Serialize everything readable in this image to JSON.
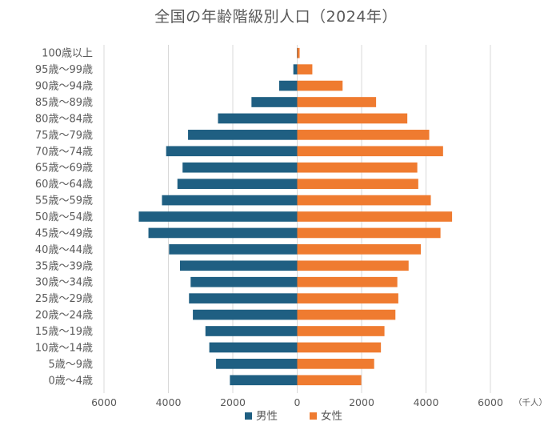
{
  "chart_data": {
    "type": "bar",
    "orientation": "horizontal",
    "title": "全国の年齢階級別人口（2024年）",
    "unit_label": "（千人）",
    "xlim": [
      -6000,
      6000
    ],
    "x_ticks": [
      -6000,
      -4000,
      -2000,
      0,
      2000,
      4000,
      6000
    ],
    "x_tick_labels": [
      "6000",
      "4000",
      "2000",
      "0",
      "2000",
      "4000",
      "6000"
    ],
    "grid": true,
    "legend_position": "bottom",
    "categories": [
      "100歳以上",
      "95歳～99歳",
      "90歳～94歳",
      "85歳～89歳",
      "80歳～84歳",
      "75歳～79歳",
      "70歳～74歳",
      "65歳～69歳",
      "60歳～64歳",
      "55歳～59歳",
      "50歳～54歳",
      "45歳～49歳",
      "40歳～44歳",
      "35歳～39歳",
      "30歳～34歳",
      "25歳～29歳",
      "20歳～24歳",
      "15歳～19歳",
      "10歳～14歳",
      "5歳～9歳",
      "0歳～4歳"
    ],
    "series": [
      {
        "name": "男性",
        "color": "#1f5f82",
        "values": [
          10,
          120,
          560,
          1420,
          2460,
          3390,
          4070,
          3560,
          3720,
          4200,
          4920,
          4620,
          3980,
          3640,
          3310,
          3360,
          3240,
          2850,
          2730,
          2520,
          2090
        ]
      },
      {
        "name": "女性",
        "color": "#ef7b30",
        "values": [
          75,
          470,
          1410,
          2450,
          3420,
          4100,
          4530,
          3730,
          3760,
          4150,
          4810,
          4450,
          3840,
          3460,
          3110,
          3140,
          3050,
          2710,
          2600,
          2390,
          1990
        ]
      }
    ]
  }
}
